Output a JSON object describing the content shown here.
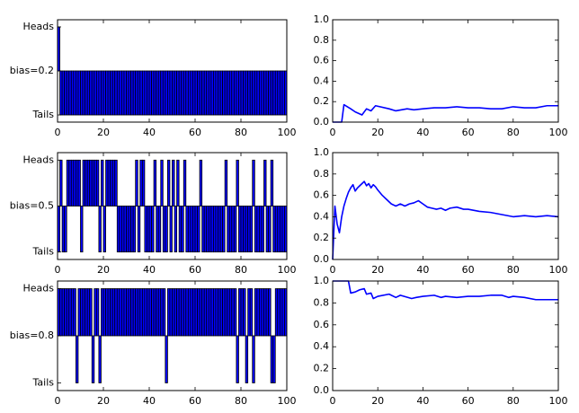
{
  "chart_data": [
    {
      "type": "bar",
      "categories": [
        "Tails",
        "bias=0.2",
        "Heads"
      ],
      "x_ticks": [
        "0",
        "20",
        "40",
        "60",
        "80",
        "100"
      ],
      "xlim": [
        0,
        100
      ],
      "ylim": [
        0,
        1
      ],
      "outcomes": [
        1,
        0,
        0,
        0,
        0,
        0,
        0,
        0,
        0,
        0,
        0,
        0,
        0,
        0,
        0,
        0,
        0,
        0,
        0,
        0,
        0,
        0,
        0,
        0,
        0,
        0,
        0,
        0,
        0,
        0,
        0,
        0,
        0,
        0,
        0,
        0,
        0,
        0,
        0,
        0,
        0,
        0,
        0,
        0,
        0,
        0,
        0,
        0,
        0,
        0,
        0,
        0,
        0,
        0,
        0,
        0,
        0,
        0,
        0,
        0,
        0,
        0,
        0,
        0,
        0,
        0,
        0,
        0,
        0,
        0,
        0,
        0,
        0,
        0,
        0,
        0,
        0,
        0,
        0,
        0,
        0,
        0,
        0,
        0,
        0,
        0,
        0,
        0,
        0,
        0,
        0,
        0,
        0,
        0,
        0,
        0,
        0,
        0,
        0,
        0
      ]
    },
    {
      "type": "line",
      "x_ticks": [
        "0",
        "20",
        "40",
        "60",
        "80",
        "100"
      ],
      "y_ticks": [
        "0.0",
        "0.2",
        "0.4",
        "0.6",
        "0.8",
        "1.0"
      ],
      "xlim": [
        0,
        100
      ],
      "ylim": [
        0,
        1
      ],
      "x": [
        0,
        4,
        5,
        8,
        10,
        12,
        13,
        15,
        17,
        19,
        25,
        28,
        33,
        36,
        40,
        45,
        50,
        55,
        60,
        65,
        70,
        75,
        80,
        85,
        90,
        95,
        100
      ],
      "values": [
        0,
        0,
        0.17,
        0.13,
        0.1,
        0.08,
        0.07,
        0.13,
        0.11,
        0.16,
        0.13,
        0.11,
        0.13,
        0.12,
        0.13,
        0.14,
        0.14,
        0.15,
        0.14,
        0.14,
        0.13,
        0.13,
        0.15,
        0.14,
        0.14,
        0.16,
        0.16
      ]
    },
    {
      "type": "bar",
      "categories": [
        "Tails",
        "bias=0.5",
        "Heads"
      ],
      "x_ticks": [
        "0",
        "20",
        "40",
        "60",
        "80",
        "100"
      ],
      "xlim": [
        0,
        100
      ],
      "ylim": [
        0,
        1
      ],
      "outcomes": [
        0,
        1,
        0,
        0,
        1,
        1,
        1,
        1,
        1,
        1,
        0,
        1,
        1,
        1,
        1,
        1,
        1,
        1,
        0,
        1,
        0,
        1,
        1,
        1,
        1,
        1,
        0,
        0,
        0,
        0,
        0,
        0,
        0,
        0,
        1,
        0,
        1,
        1,
        0,
        0,
        0,
        0,
        1,
        0,
        0,
        1,
        0,
        0,
        1,
        0,
        1,
        0,
        1,
        0,
        0,
        1,
        0,
        0,
        0,
        0,
        0,
        0,
        1,
        0,
        0,
        0,
        0,
        0,
        0,
        0,
        0,
        0,
        0,
        1,
        0,
        0,
        0,
        0,
        1,
        0,
        0,
        0,
        0,
        0,
        0,
        1,
        0,
        0,
        0,
        0,
        1,
        0,
        0,
        1,
        0,
        0,
        0,
        0,
        0,
        0
      ]
    },
    {
      "type": "line",
      "x_ticks": [
        "0",
        "20",
        "40",
        "60",
        "80",
        "100"
      ],
      "y_ticks": [
        "0.0",
        "0.2",
        "0.4",
        "0.6",
        "0.8",
        "1.0"
      ],
      "xlim": [
        0,
        100
      ],
      "ylim": [
        0,
        1
      ],
      "x": [
        0,
        1,
        2,
        3,
        4,
        5,
        6,
        7,
        8,
        9,
        10,
        11,
        12,
        13,
        14,
        15,
        16,
        17,
        18,
        19,
        20,
        22,
        24,
        26,
        28,
        30,
        32,
        34,
        36,
        38,
        40,
        42,
        44,
        46,
        48,
        50,
        52,
        55,
        58,
        60,
        65,
        70,
        75,
        80,
        85,
        90,
        95,
        100
      ],
      "values": [
        0,
        0.5,
        0.33,
        0.25,
        0.4,
        0.5,
        0.57,
        0.63,
        0.67,
        0.7,
        0.64,
        0.67,
        0.69,
        0.71,
        0.73,
        0.69,
        0.71,
        0.67,
        0.7,
        0.68,
        0.65,
        0.6,
        0.56,
        0.52,
        0.5,
        0.52,
        0.5,
        0.52,
        0.53,
        0.55,
        0.52,
        0.49,
        0.48,
        0.47,
        0.48,
        0.46,
        0.48,
        0.49,
        0.47,
        0.47,
        0.45,
        0.44,
        0.42,
        0.4,
        0.41,
        0.4,
        0.41,
        0.4
      ]
    },
    {
      "type": "bar",
      "categories": [
        "Tails",
        "bias=0.8",
        "Heads"
      ],
      "x_ticks": [
        "0",
        "20",
        "40",
        "60",
        "80",
        "100"
      ],
      "xlim": [
        0,
        100
      ],
      "ylim": [
        0,
        1
      ],
      "outcomes": [
        1,
        1,
        1,
        1,
        1,
        1,
        1,
        1,
        0,
        1,
        1,
        1,
        1,
        1,
        1,
        0,
        1,
        1,
        0,
        1,
        1,
        1,
        1,
        1,
        1,
        1,
        1,
        1,
        1,
        1,
        1,
        1,
        1,
        1,
        1,
        1,
        1,
        1,
        1,
        1,
        1,
        1,
        1,
        1,
        1,
        1,
        1,
        0,
        1,
        1,
        1,
        1,
        1,
        1,
        1,
        1,
        1,
        1,
        1,
        1,
        1,
        1,
        1,
        1,
        1,
        1,
        1,
        1,
        1,
        1,
        1,
        1,
        1,
        1,
        1,
        1,
        1,
        1,
        0,
        1,
        1,
        1,
        0,
        1,
        1,
        0,
        1,
        1,
        1,
        1,
        1,
        1,
        1,
        0,
        0,
        1,
        1,
        1,
        1,
        1
      ]
    },
    {
      "type": "line",
      "x_ticks": [
        "0",
        "20",
        "40",
        "60",
        "80",
        "100"
      ],
      "y_ticks": [
        "0.0",
        "0.2",
        "0.4",
        "0.6",
        "0.8",
        "1.0"
      ],
      "xlim": [
        0,
        100
      ],
      "ylim": [
        0,
        1
      ],
      "x": [
        0,
        7,
        8,
        10,
        12,
        14,
        15,
        17,
        18,
        20,
        25,
        28,
        30,
        35,
        37,
        40,
        45,
        48,
        50,
        55,
        60,
        65,
        70,
        75,
        78,
        80,
        85,
        90,
        95,
        100
      ],
      "values": [
        1,
        1,
        0.89,
        0.9,
        0.92,
        0.93,
        0.88,
        0.89,
        0.84,
        0.86,
        0.88,
        0.85,
        0.87,
        0.84,
        0.85,
        0.86,
        0.87,
        0.85,
        0.86,
        0.85,
        0.86,
        0.86,
        0.87,
        0.87,
        0.85,
        0.86,
        0.85,
        0.83,
        0.83,
        0.83
      ]
    }
  ]
}
